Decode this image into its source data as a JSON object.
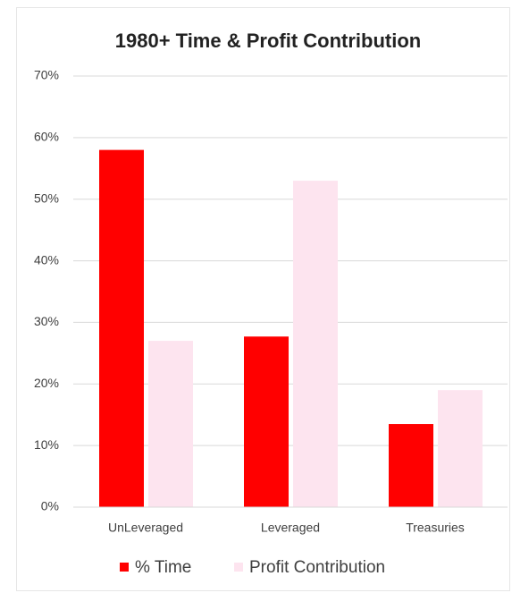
{
  "chart_data": {
    "type": "bar",
    "title": "1980+ Time & Profit Contribution",
    "categories": [
      "UnLeveraged",
      "Leveraged",
      "Treasuries"
    ],
    "series": [
      {
        "name": "% Time",
        "color": "#ff0000",
        "values": [
          58,
          27.7,
          13.5
        ]
      },
      {
        "name": "Profit Contribution",
        "color": "#fde4ef",
        "values": [
          27,
          53,
          19
        ]
      }
    ],
    "ylim": [
      0,
      70
    ],
    "yticks": [
      {
        "value": 0,
        "label": "0%"
      },
      {
        "value": 10,
        "label": "10%"
      },
      {
        "value": 20,
        "label": "20%"
      },
      {
        "value": 30,
        "label": "30%"
      },
      {
        "value": 40,
        "label": "40%"
      },
      {
        "value": 50,
        "label": "50%"
      },
      {
        "value": 60,
        "label": "60%"
      },
      {
        "value": 70,
        "label": "70%"
      }
    ],
    "grid": true
  }
}
